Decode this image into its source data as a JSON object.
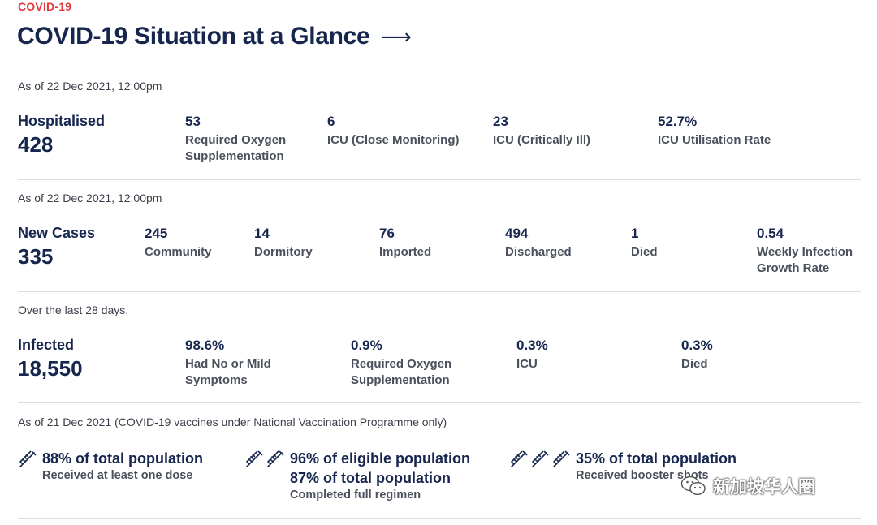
{
  "header": {
    "eyebrow": "COVID-19",
    "title": "COVID-19 Situation at a Glance",
    "arrow": "⟶"
  },
  "hospitalised": {
    "as_of": "As of 22 Dec 2021, 12:00pm",
    "label": "Hospitalised",
    "value": "428",
    "stats": [
      {
        "num": "53",
        "label": "Required Oxygen Supplementation"
      },
      {
        "num": "6",
        "label": "ICU (Close Monitoring)"
      },
      {
        "num": "23",
        "label": "ICU (Critically Ill)"
      },
      {
        "num": "52.7%",
        "label": "ICU Utilisation Rate"
      }
    ]
  },
  "new_cases": {
    "as_of": "As of 22 Dec 2021, 12:00pm",
    "label": "New Cases",
    "value": "335",
    "stats": [
      {
        "num": "245",
        "label": "Community"
      },
      {
        "num": "14",
        "label": "Dormitory"
      },
      {
        "num": "76",
        "label": "Imported"
      },
      {
        "num": "494",
        "label": "Discharged"
      },
      {
        "num": "1",
        "label": "Died"
      },
      {
        "num": "0.54",
        "label": "Weekly Infection Growth Rate"
      }
    ]
  },
  "infected": {
    "as_of": "Over the last 28 days,",
    "label": "Infected",
    "value": "18,550",
    "stats": [
      {
        "num": "98.6%",
        "label": "Had No or Mild Symptoms"
      },
      {
        "num": "0.9%",
        "label": "Required Oxygen Supplementation"
      },
      {
        "num": "0.3%",
        "label": "ICU"
      },
      {
        "num": "0.3%",
        "label": "Died"
      }
    ]
  },
  "vaccination": {
    "as_of": "As of 21 Dec 2021 (COVID-19 vaccines under National Vaccination Programme only)",
    "items": [
      {
        "icon_count": 1,
        "lines": [
          {
            "big": "88% of total population",
            "small": "Received at least one dose"
          }
        ]
      },
      {
        "icon_count": 2,
        "lines": [
          {
            "big": "96% of eligible population"
          },
          {
            "big": "87% of total population",
            "small": "Completed full regimen"
          }
        ]
      },
      {
        "icon_count": 3,
        "lines": [
          {
            "big": "35% of total population",
            "small": "Received booster shots"
          }
        ]
      }
    ]
  },
  "watermark": {
    "text": "新加坡华人圈",
    "icon": "wechat-icon"
  },
  "colors": {
    "accent": "#e0393e",
    "navy": "#17264f",
    "divider": "#dcdcdc"
  }
}
